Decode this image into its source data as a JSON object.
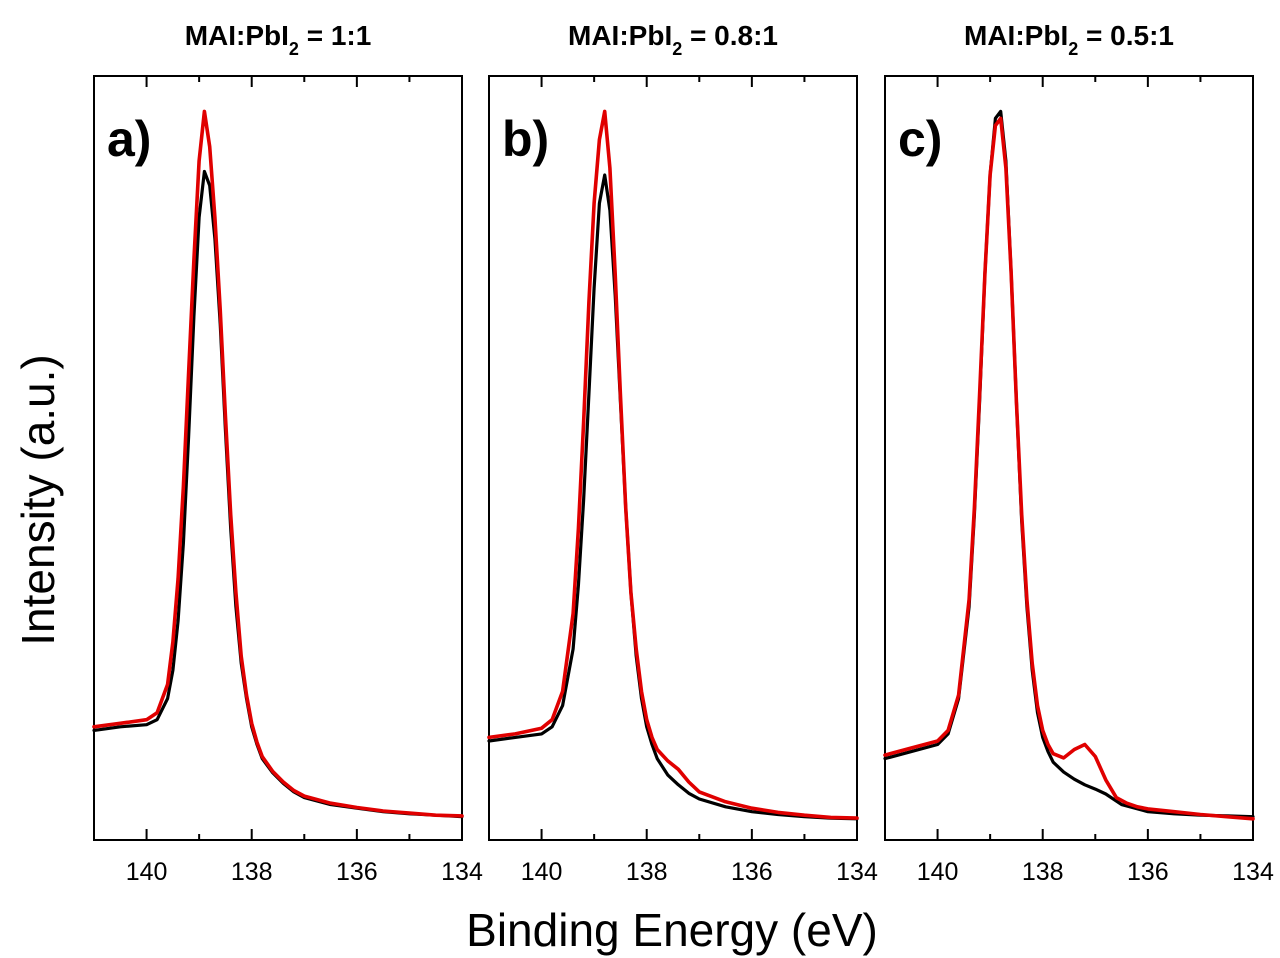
{
  "figure": {
    "xlabel": "Binding Energy (eV)",
    "ylabel": "Intensity (a.u.)"
  },
  "chart_data": [
    {
      "type": "line",
      "panel_label": "a)",
      "title": {
        "prefix": "MAI:PbI",
        "sub": "2",
        "suffix": " = 1:1"
      },
      "xlim": [
        141,
        134
      ],
      "ylim": [
        0,
        1.08
      ],
      "x_ticks": [
        140,
        138,
        136,
        134
      ],
      "x_tick_labels": [
        "140",
        "138",
        "136",
        "134"
      ],
      "series": [
        {
          "color": "#000000",
          "x": [
            141,
            140.5,
            140,
            139.8,
            139.6,
            139.5,
            139.4,
            139.3,
            139.2,
            139.1,
            139.0,
            138.9,
            138.8,
            138.7,
            138.6,
            138.5,
            138.4,
            138.3,
            138.2,
            138.1,
            138.0,
            137.9,
            137.8,
            137.6,
            137.4,
            137.2,
            137,
            136.5,
            136,
            135.5,
            135,
            134.5,
            134
          ],
          "y": [
            0.155,
            0.16,
            0.163,
            0.17,
            0.2,
            0.24,
            0.31,
            0.42,
            0.57,
            0.74,
            0.88,
            0.945,
            0.925,
            0.85,
            0.73,
            0.58,
            0.44,
            0.33,
            0.25,
            0.2,
            0.16,
            0.135,
            0.115,
            0.095,
            0.08,
            0.068,
            0.06,
            0.05,
            0.045,
            0.04,
            0.037,
            0.035,
            0.033
          ]
        },
        {
          "color": "#e00000",
          "x": [
            141,
            140.5,
            140,
            139.8,
            139.6,
            139.5,
            139.4,
            139.3,
            139.2,
            139.1,
            139.0,
            138.9,
            138.8,
            138.7,
            138.6,
            138.5,
            138.4,
            138.3,
            138.2,
            138.1,
            138.0,
            137.9,
            137.8,
            137.6,
            137.4,
            137.2,
            137,
            136.5,
            136,
            135.5,
            135,
            134.5,
            134
          ],
          "y": [
            0.16,
            0.165,
            0.17,
            0.18,
            0.22,
            0.28,
            0.37,
            0.5,
            0.66,
            0.82,
            0.96,
            1.03,
            0.98,
            0.88,
            0.75,
            0.6,
            0.46,
            0.35,
            0.26,
            0.205,
            0.165,
            0.138,
            0.118,
            0.097,
            0.082,
            0.07,
            0.062,
            0.052,
            0.046,
            0.041,
            0.038,
            0.035,
            0.034
          ]
        }
      ]
    },
    {
      "type": "line",
      "panel_label": "b)",
      "title": {
        "prefix": "MAI:PbI",
        "sub": "2",
        "suffix": " = 0.8:1"
      },
      "xlim": [
        141,
        134
      ],
      "ylim": [
        0,
        1.08
      ],
      "x_ticks": [
        140,
        138,
        136,
        134
      ],
      "x_tick_labels": [
        "140",
        "138",
        "136",
        "134"
      ],
      "series": [
        {
          "color": "#000000",
          "x": [
            141,
            140.5,
            140,
            139.8,
            139.6,
            139.4,
            139.3,
            139.2,
            139.1,
            139.0,
            138.9,
            138.8,
            138.7,
            138.6,
            138.5,
            138.4,
            138.3,
            138.2,
            138.1,
            138.0,
            137.9,
            137.8,
            137.6,
            137.4,
            137.2,
            137,
            136.5,
            136,
            135.5,
            135,
            134.5,
            134
          ],
          "y": [
            0.14,
            0.145,
            0.15,
            0.16,
            0.19,
            0.27,
            0.36,
            0.48,
            0.63,
            0.78,
            0.9,
            0.94,
            0.89,
            0.77,
            0.62,
            0.47,
            0.35,
            0.26,
            0.2,
            0.16,
            0.135,
            0.115,
            0.092,
            0.078,
            0.066,
            0.058,
            0.047,
            0.04,
            0.036,
            0.033,
            0.031,
            0.03
          ]
        },
        {
          "color": "#e00000",
          "x": [
            141,
            140.5,
            140,
            139.8,
            139.6,
            139.4,
            139.3,
            139.2,
            139.1,
            139.0,
            138.9,
            138.8,
            138.7,
            138.6,
            138.5,
            138.4,
            138.3,
            138.2,
            138.1,
            138.0,
            137.9,
            137.8,
            137.6,
            137.4,
            137.2,
            137,
            136.5,
            136,
            135.5,
            135,
            134.5,
            134
          ],
          "y": [
            0.145,
            0.15,
            0.158,
            0.17,
            0.21,
            0.32,
            0.44,
            0.59,
            0.76,
            0.9,
            0.99,
            1.03,
            0.95,
            0.8,
            0.63,
            0.47,
            0.35,
            0.27,
            0.21,
            0.17,
            0.145,
            0.128,
            0.112,
            0.1,
            0.082,
            0.068,
            0.054,
            0.045,
            0.039,
            0.035,
            0.032,
            0.031
          ]
        }
      ]
    },
    {
      "type": "line",
      "panel_label": "c)",
      "title": {
        "prefix": "MAI:PbI",
        "sub": "2",
        "suffix": " = 0.5:1"
      },
      "xlim": [
        141,
        134
      ],
      "ylim": [
        0,
        1.08
      ],
      "x_ticks": [
        140,
        138,
        136,
        134
      ],
      "x_tick_labels": [
        "140",
        "138",
        "136",
        "134"
      ],
      "series": [
        {
          "color": "#000000",
          "x": [
            141,
            140.5,
            140,
            139.8,
            139.6,
            139.4,
            139.3,
            139.2,
            139.1,
            139.0,
            138.9,
            138.8,
            138.7,
            138.6,
            138.5,
            138.4,
            138.3,
            138.2,
            138.1,
            138.0,
            137.9,
            137.8,
            137.6,
            137.4,
            137.2,
            137,
            136.8,
            136.5,
            136,
            135.5,
            135,
            134.5,
            134
          ],
          "y": [
            0.115,
            0.125,
            0.135,
            0.15,
            0.2,
            0.33,
            0.46,
            0.62,
            0.8,
            0.94,
            1.02,
            1.03,
            0.96,
            0.8,
            0.62,
            0.45,
            0.33,
            0.24,
            0.18,
            0.145,
            0.125,
            0.11,
            0.096,
            0.086,
            0.078,
            0.072,
            0.065,
            0.05,
            0.04,
            0.037,
            0.035,
            0.034,
            0.033
          ]
        },
        {
          "color": "#e00000",
          "x": [
            141,
            140.5,
            140,
            139.8,
            139.6,
            139.4,
            139.3,
            139.2,
            139.1,
            139.0,
            138.9,
            138.8,
            138.7,
            138.6,
            138.5,
            138.4,
            138.3,
            138.2,
            138.1,
            138.0,
            137.9,
            137.8,
            137.6,
            137.4,
            137.2,
            137.0,
            136.8,
            136.6,
            136.4,
            136.2,
            136,
            135.5,
            135,
            134.5,
            134
          ],
          "y": [
            0.12,
            0.13,
            0.14,
            0.155,
            0.205,
            0.34,
            0.47,
            0.63,
            0.8,
            0.94,
            1.01,
            1.02,
            0.95,
            0.8,
            0.62,
            0.46,
            0.34,
            0.25,
            0.19,
            0.155,
            0.135,
            0.122,
            0.116,
            0.128,
            0.135,
            0.118,
            0.085,
            0.06,
            0.052,
            0.047,
            0.044,
            0.04,
            0.036,
            0.033,
            0.03
          ]
        }
      ]
    }
  ]
}
